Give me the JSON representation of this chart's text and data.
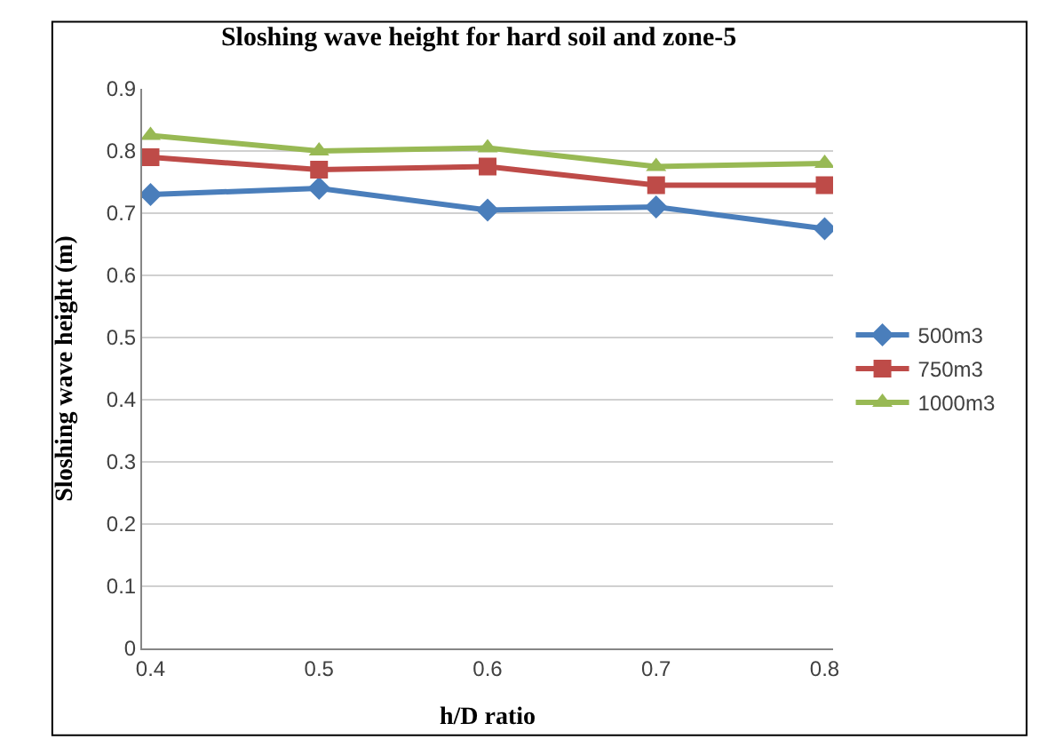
{
  "chart_data": {
    "type": "line",
    "title": "Sloshing wave height for hard soil and zone-5",
    "xlabel": "h/D ratio",
    "ylabel": "Sloshing wave height (m)",
    "categories": [
      "0.4",
      "0.5",
      "0.6",
      "0.7",
      "0.8"
    ],
    "series": [
      {
        "name": "500m3",
        "color": "#4a7ebb",
        "values": [
          0.73,
          0.74,
          0.705,
          0.71,
          0.675
        ],
        "marker": "diamond"
      },
      {
        "name": "750m3",
        "color": "#be4b48",
        "values": [
          0.79,
          0.77,
          0.775,
          0.745,
          0.745
        ],
        "marker": "square"
      },
      {
        "name": "1000m3",
        "color": "#98b954",
        "values": [
          0.825,
          0.8,
          0.805,
          0.775,
          0.78
        ],
        "marker": "triangle"
      }
    ],
    "ylim": [
      0,
      0.9
    ],
    "yticks": [
      0,
      0.1,
      0.2,
      0.3,
      0.4,
      0.5,
      0.6,
      0.7,
      0.8,
      0.9
    ],
    "grid": "y",
    "legend": "right",
    "line_style": "solid"
  }
}
